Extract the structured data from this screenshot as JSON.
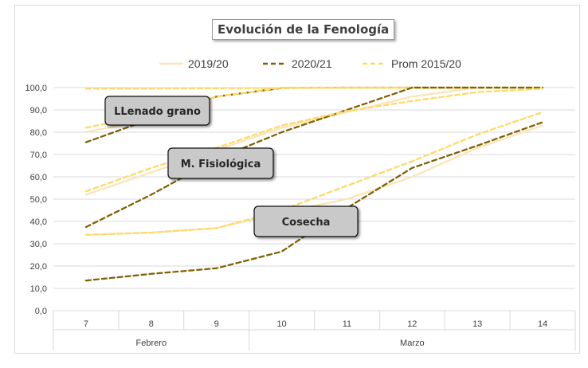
{
  "chart_data": {
    "type": "line",
    "title": "Evolución  de la Fenología",
    "categories": [
      "7",
      "8",
      "9",
      "10",
      "11",
      "12",
      "13",
      "14"
    ],
    "category_groups": [
      {
        "label": "Febrero",
        "span": 3
      },
      {
        "label": "Marzo",
        "span": 5
      }
    ],
    "ylim": [
      0,
      100
    ],
    "ytick_labels": [
      "0,0",
      "10,0",
      "20,0",
      "30,0",
      "40,0",
      "50,0",
      "60,0",
      "70,0",
      "80,0",
      "90,0",
      "100,0"
    ],
    "grid": true,
    "legend_position": "top",
    "legend": [
      {
        "label": "2019/20",
        "color": "#fbe5b6",
        "dash": "solid"
      },
      {
        "label": "2020/21",
        "color": "#7f6000",
        "dash": "dashed"
      },
      {
        "label": "Prom 2015/20",
        "color": "#ffd966",
        "dash": "dashed"
      }
    ],
    "groups": [
      {
        "name": "LLenado grano",
        "series": [
          {
            "legend": "2019/20",
            "values": [
              80,
              86,
              96,
              100,
              100,
              100,
              100,
              100
            ]
          },
          {
            "legend": "2020/21",
            "values": [
              75.5,
              86,
              96,
              99.8,
              100,
              100,
              100,
              100
            ]
          },
          {
            "legend": "Prom 2015/20",
            "values": [
              99.5,
              99.6,
              99.7,
              99.8,
              99.9,
              99.9,
              100,
              100
            ]
          },
          {
            "legend": "Prom 2015/20",
            "values": [
              82,
              88,
              96,
              100,
              100,
              100,
              100,
              100
            ]
          }
        ]
      },
      {
        "name": "M. Fisiológica",
        "series": [
          {
            "legend": "2019/20",
            "values": [
              52,
              62,
              72,
              82,
              89,
              96,
              100,
              100
            ]
          },
          {
            "legend": "2020/21",
            "values": [
              37.5,
              52,
              68,
              80,
              90,
              100,
              100,
              100
            ]
          },
          {
            "legend": "Prom 2015/20",
            "values": [
              53.5,
              64,
              73,
              83,
              89.5,
              94,
              98,
              99.5
            ]
          }
        ]
      },
      {
        "name": "Cosecha",
        "series": [
          {
            "legend": "2019/20",
            "values": [
              34,
              35,
              37,
              44,
              50,
              60,
              73,
              83
            ]
          },
          {
            "legend": "2020/21",
            "values": [
              13.5,
              16.5,
              19,
              26.5,
              46,
              64,
              74,
              84.5
            ]
          },
          {
            "legend": "Prom 2015/20",
            "values": [
              34,
              35,
              37,
              45,
              56,
              67,
              79,
              89
            ]
          }
        ]
      }
    ],
    "annotations": [
      "LLenado grano",
      "M. Fisiológica",
      "Cosecha"
    ]
  }
}
